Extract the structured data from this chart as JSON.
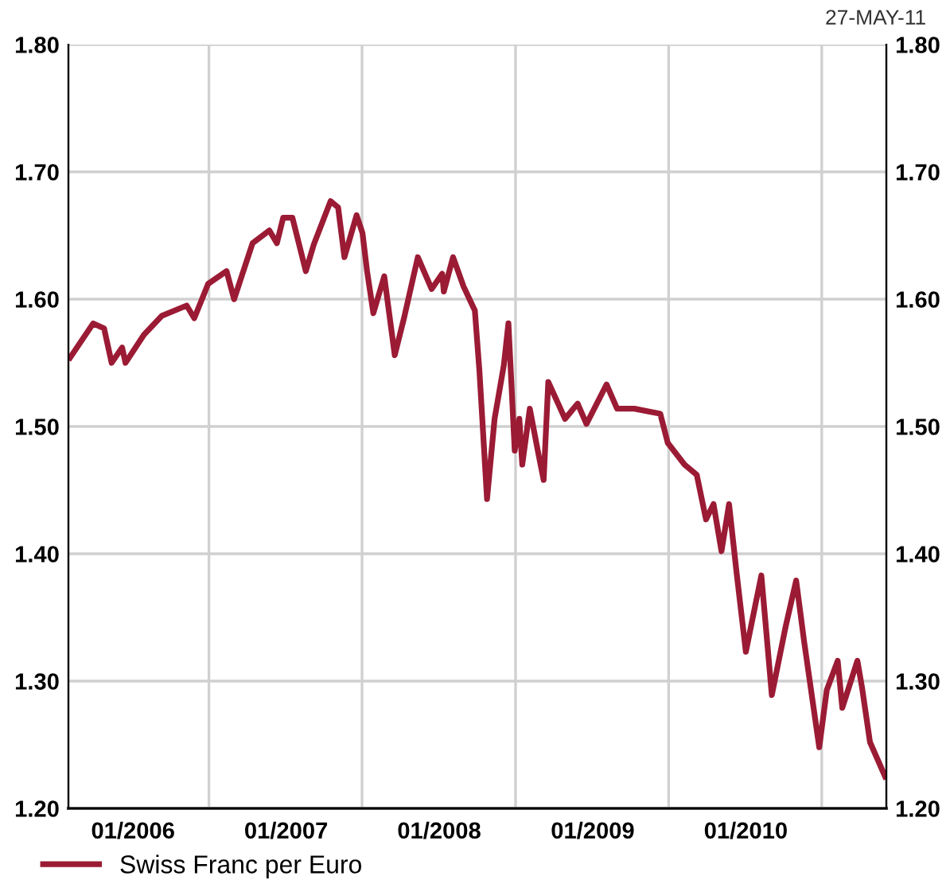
{
  "chart_data": {
    "type": "line",
    "annotations": [
      "27-MAY-11"
    ],
    "x": [
      "2005-08-04",
      "2005-09-28",
      "2005-10-24",
      "2005-11-11",
      "2005-12-06",
      "2005-12-14",
      "2006-01-27",
      "2006-03-11",
      "2006-05-09",
      "2006-05-27",
      "2006-06-29",
      "2006-08-12",
      "2006-08-30",
      "2006-10-13",
      "2006-11-22",
      "2006-12-10",
      "2006-12-25",
      "2007-01-16",
      "2007-02-17",
      "2007-03-08",
      "2007-04-17",
      "2007-05-05",
      "2007-05-20",
      "2007-06-18",
      "2007-07-02",
      "2007-07-13",
      "2007-07-28",
      "2007-08-23",
      "2007-09-17",
      "2007-10-09",
      "2007-11-11",
      "2007-12-14",
      "2008-01-08",
      "2008-01-12",
      "2008-02-03",
      "2008-02-28",
      "2008-03-26",
      "2008-04-06",
      "2008-04-24",
      "2008-05-12",
      "2008-06-03",
      "2008-06-14",
      "2008-06-29",
      "2008-07-10",
      "2008-07-17",
      "2008-08-04",
      "2008-08-23",
      "2008-09-06",
      "2008-09-17",
      "2008-10-27",
      "2008-11-26",
      "2008-12-17",
      "2009-02-03",
      "2009-02-28",
      "2009-04-10",
      "2009-06-11",
      "2009-06-29",
      "2009-08-08",
      "2009-09-06",
      "2009-09-28",
      "2009-10-16",
      "2009-11-04",
      "2009-11-22",
      "2009-12-10",
      "2010-01-01",
      "2010-02-07",
      "2010-03-04",
      "2010-04-06",
      "2010-05-01",
      "2010-05-20",
      "2010-06-25",
      "2010-07-13",
      "2010-08-08",
      "2010-08-19",
      "2010-09-24",
      "2010-10-05",
      "2010-10-24",
      "2010-11-29"
    ],
    "series": [
      {
        "name": "Swiss Franc per Euro",
        "color": "#9b1b35",
        "values": [
          1.554,
          1.581,
          1.577,
          1.55,
          1.562,
          1.55,
          1.572,
          1.587,
          1.595,
          1.585,
          1.612,
          1.622,
          1.6,
          1.644,
          1.654,
          1.644,
          1.664,
          1.664,
          1.622,
          1.643,
          1.677,
          1.672,
          1.633,
          1.666,
          1.652,
          1.622,
          1.589,
          1.618,
          1.556,
          1.585,
          1.633,
          1.608,
          1.62,
          1.606,
          1.633,
          1.61,
          1.591,
          1.543,
          1.443,
          1.506,
          1.548,
          1.581,
          1.481,
          1.506,
          1.47,
          1.514,
          1.481,
          1.458,
          1.535,
          1.506,
          1.518,
          1.502,
          1.533,
          1.514,
          1.514,
          1.51,
          1.487,
          1.47,
          1.462,
          1.427,
          1.439,
          1.402,
          1.439,
          1.385,
          1.323,
          1.383,
          1.289,
          1.343,
          1.379,
          1.331,
          1.248,
          1.293,
          1.316,
          1.279,
          1.316,
          1.295,
          1.252,
          1.225
        ]
      }
    ],
    "xlim": [
      "2005-07-31",
      "2010-12-02"
    ],
    "xticks": [
      {
        "value": "2006-01-01",
        "label": "01/2006"
      },
      {
        "value": "2006-07-01",
        "label": null
      },
      {
        "value": "2007-01-01",
        "label": "01/2007"
      },
      {
        "value": "2007-07-01",
        "label": null
      },
      {
        "value": "2008-01-01",
        "label": "01/2008"
      },
      {
        "value": "2008-07-01",
        "label": null
      },
      {
        "value": "2009-01-01",
        "label": "01/2009"
      },
      {
        "value": "2009-07-01",
        "label": null
      },
      {
        "value": "2010-01-01",
        "label": "01/2010"
      },
      {
        "value": "2010-07-01",
        "label": null
      }
    ],
    "ylim": [
      1.2,
      1.8
    ],
    "yticks": [
      {
        "value": 1.2,
        "label": "1.20"
      },
      {
        "value": 1.3,
        "label": "1.30"
      },
      {
        "value": 1.4,
        "label": "1.40"
      },
      {
        "value": 1.5,
        "label": "1.50"
      },
      {
        "value": 1.6,
        "label": "1.60"
      },
      {
        "value": 1.7,
        "label": "1.70"
      },
      {
        "value": 1.8,
        "label": "1.80"
      }
    ],
    "y2lim": [
      1.2,
      1.8
    ],
    "y2ticks": [
      {
        "value": 1.2,
        "label": "1.20"
      },
      {
        "value": 1.3,
        "label": "1.30"
      },
      {
        "value": 1.4,
        "label": "1.40"
      },
      {
        "value": 1.5,
        "label": "1.50"
      },
      {
        "value": 1.6,
        "label": "1.60"
      },
      {
        "value": 1.7,
        "label": "1.70"
      },
      {
        "value": 1.8,
        "label": "1.80"
      }
    ],
    "grid": true,
    "legend": "bottom left",
    "marker": "none",
    "line_style": "solid"
  }
}
